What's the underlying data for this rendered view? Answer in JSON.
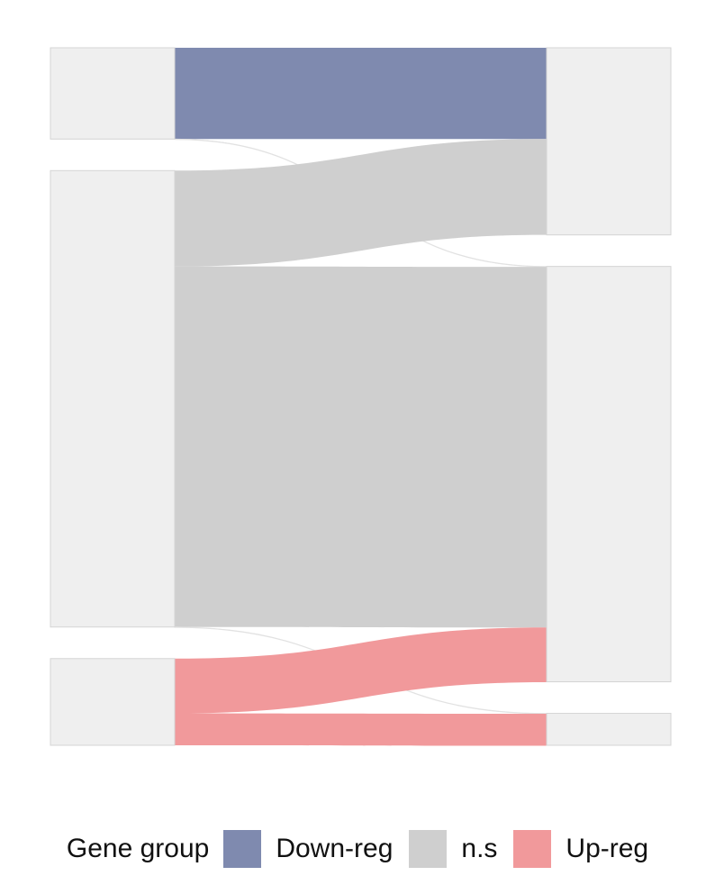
{
  "chart_data": {
    "type": "sankey",
    "left_nodes": [
      {
        "id": "L1",
        "value": 100
      },
      {
        "id": "L2",
        "value": 500
      },
      {
        "id": "L3",
        "value": 95
      }
    ],
    "right_nodes": [
      {
        "id": "R1",
        "value": 205
      },
      {
        "id": "R2",
        "value": 455
      },
      {
        "id": "R3",
        "value": 35
      }
    ],
    "flows": [
      {
        "source": "L1",
        "target": "R1",
        "value": 100,
        "group": "Down-reg"
      },
      {
        "source": "L1",
        "target": "R2",
        "value": 0.5,
        "group": "Down-reg"
      },
      {
        "source": "L2",
        "target": "R1",
        "value": 105,
        "group": "n.s"
      },
      {
        "source": "L2",
        "target": "R2",
        "value": 395,
        "group": "n.s"
      },
      {
        "source": "L2",
        "target": "R3",
        "value": 0.5,
        "group": "n.s"
      },
      {
        "source": "L3",
        "target": "R2",
        "value": 60,
        "group": "Up-reg"
      },
      {
        "source": "L3",
        "target": "R3",
        "value": 35,
        "group": "Up-reg"
      }
    ],
    "legend": {
      "title": "Gene group",
      "position": "bottom",
      "entries": [
        {
          "label": "Down-reg",
          "color": "#7f8aaf"
        },
        {
          "label": "n.s",
          "color": "#cfcfcf"
        },
        {
          "label": "Up-reg",
          "color": "#f1999b"
        }
      ]
    },
    "node_color": "#efefef",
    "node_stroke": "#d4d4d4"
  }
}
